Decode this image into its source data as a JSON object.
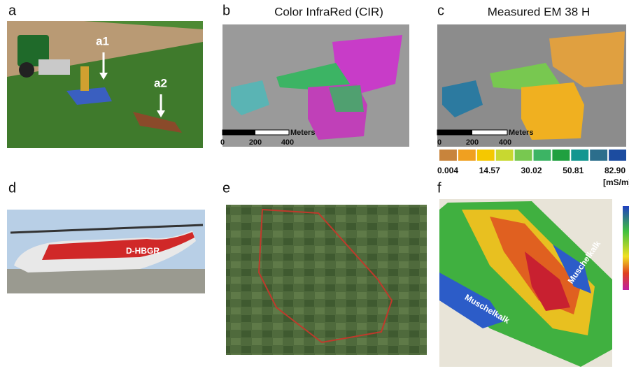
{
  "panels": {
    "a": {
      "letter": "a",
      "tags": [
        "a1",
        "a2"
      ]
    },
    "b": {
      "letter": "b",
      "title": "Color InfraRed (CIR)",
      "scale": {
        "unit": "Meters",
        "ticks": [
          "0",
          "200",
          "400"
        ]
      }
    },
    "c": {
      "letter": "c",
      "title": "Measured EM 38 H",
      "scale": {
        "unit": "Meters",
        "ticks": [
          "0",
          "200",
          "400"
        ]
      },
      "legend": {
        "colors": [
          "#c8843c",
          "#f0a020",
          "#f5c800",
          "#c8d830",
          "#78c850",
          "#3cb464",
          "#20a040",
          "#149690",
          "#2c6e8c",
          "#1c4ca0"
        ],
        "labels": [
          "0.004",
          "14.57",
          "30.02",
          "50.81",
          "82.90"
        ],
        "unit": "[mS/m]"
      }
    },
    "d": {
      "letter": "d",
      "registration": "D-HBGR"
    },
    "e": {
      "letter": "e"
    },
    "f": {
      "letter": "f",
      "labels": [
        "Muschelkalk",
        "Muschelkalk"
      ]
    }
  }
}
